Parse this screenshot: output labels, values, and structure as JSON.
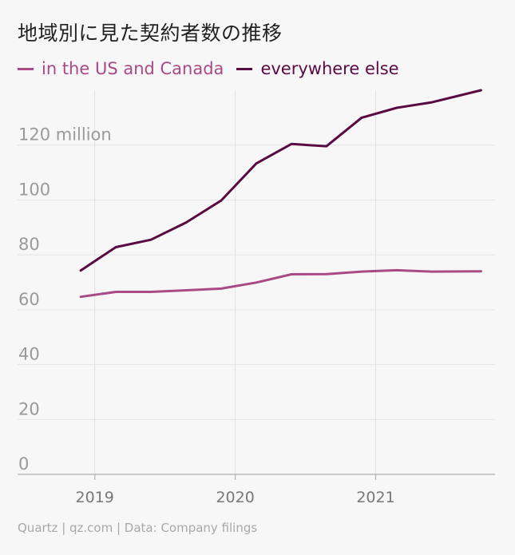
{
  "title": "地域別に見た契約者数の推移",
  "footer": "Quartz | qz.com | Data: Company filings",
  "colors": {
    "us_canada": "#a84a85",
    "everywhere_else": "#5a0a42",
    "grid": "#e4e3e3",
    "axis": "#b0b0b0",
    "background": "#f8f7f7"
  },
  "chart_data": {
    "type": "line",
    "title": "地域別に見た契約者数の推移",
    "xlabel": "",
    "ylabel": "",
    "ylim": [
      0,
      140
    ],
    "xlim": [
      2018.45,
      2021.85
    ],
    "y_ticks": [
      0,
      20,
      40,
      60,
      80,
      100,
      120
    ],
    "y_tick_labels": [
      "0",
      "20",
      "40",
      "60",
      "80",
      "100",
      "120 million"
    ],
    "x_ticks": [
      2019,
      2020,
      2021
    ],
    "x_tick_labels": [
      "2019",
      "2020",
      "2021"
    ],
    "grid": true,
    "legend_position": "top-left",
    "series": [
      {
        "name": "in the US and Canada",
        "color": "#a84a85",
        "x": [
          2018.9,
          2019.15,
          2019.4,
          2019.65,
          2019.9,
          2020.15,
          2020.4,
          2020.65,
          2020.9,
          2021.15,
          2021.4,
          2021.75
        ],
        "values": [
          64.7,
          66.5,
          66.5,
          67.1,
          67.7,
          69.9,
          72.9,
          73.0,
          73.9,
          74.4,
          73.9,
          74.0
        ]
      },
      {
        "name": "everywhere else",
        "color": "#5a0a42",
        "x": [
          2018.9,
          2019.15,
          2019.4,
          2019.65,
          2019.9,
          2020.15,
          2020.4,
          2020.65,
          2020.9,
          2021.15,
          2021.4,
          2021.75
        ],
        "values": [
          74.3,
          82.8,
          85.5,
          91.8,
          99.8,
          113.3,
          120.4,
          119.6,
          130.0,
          133.6,
          135.6,
          140.0
        ]
      }
    ]
  }
}
